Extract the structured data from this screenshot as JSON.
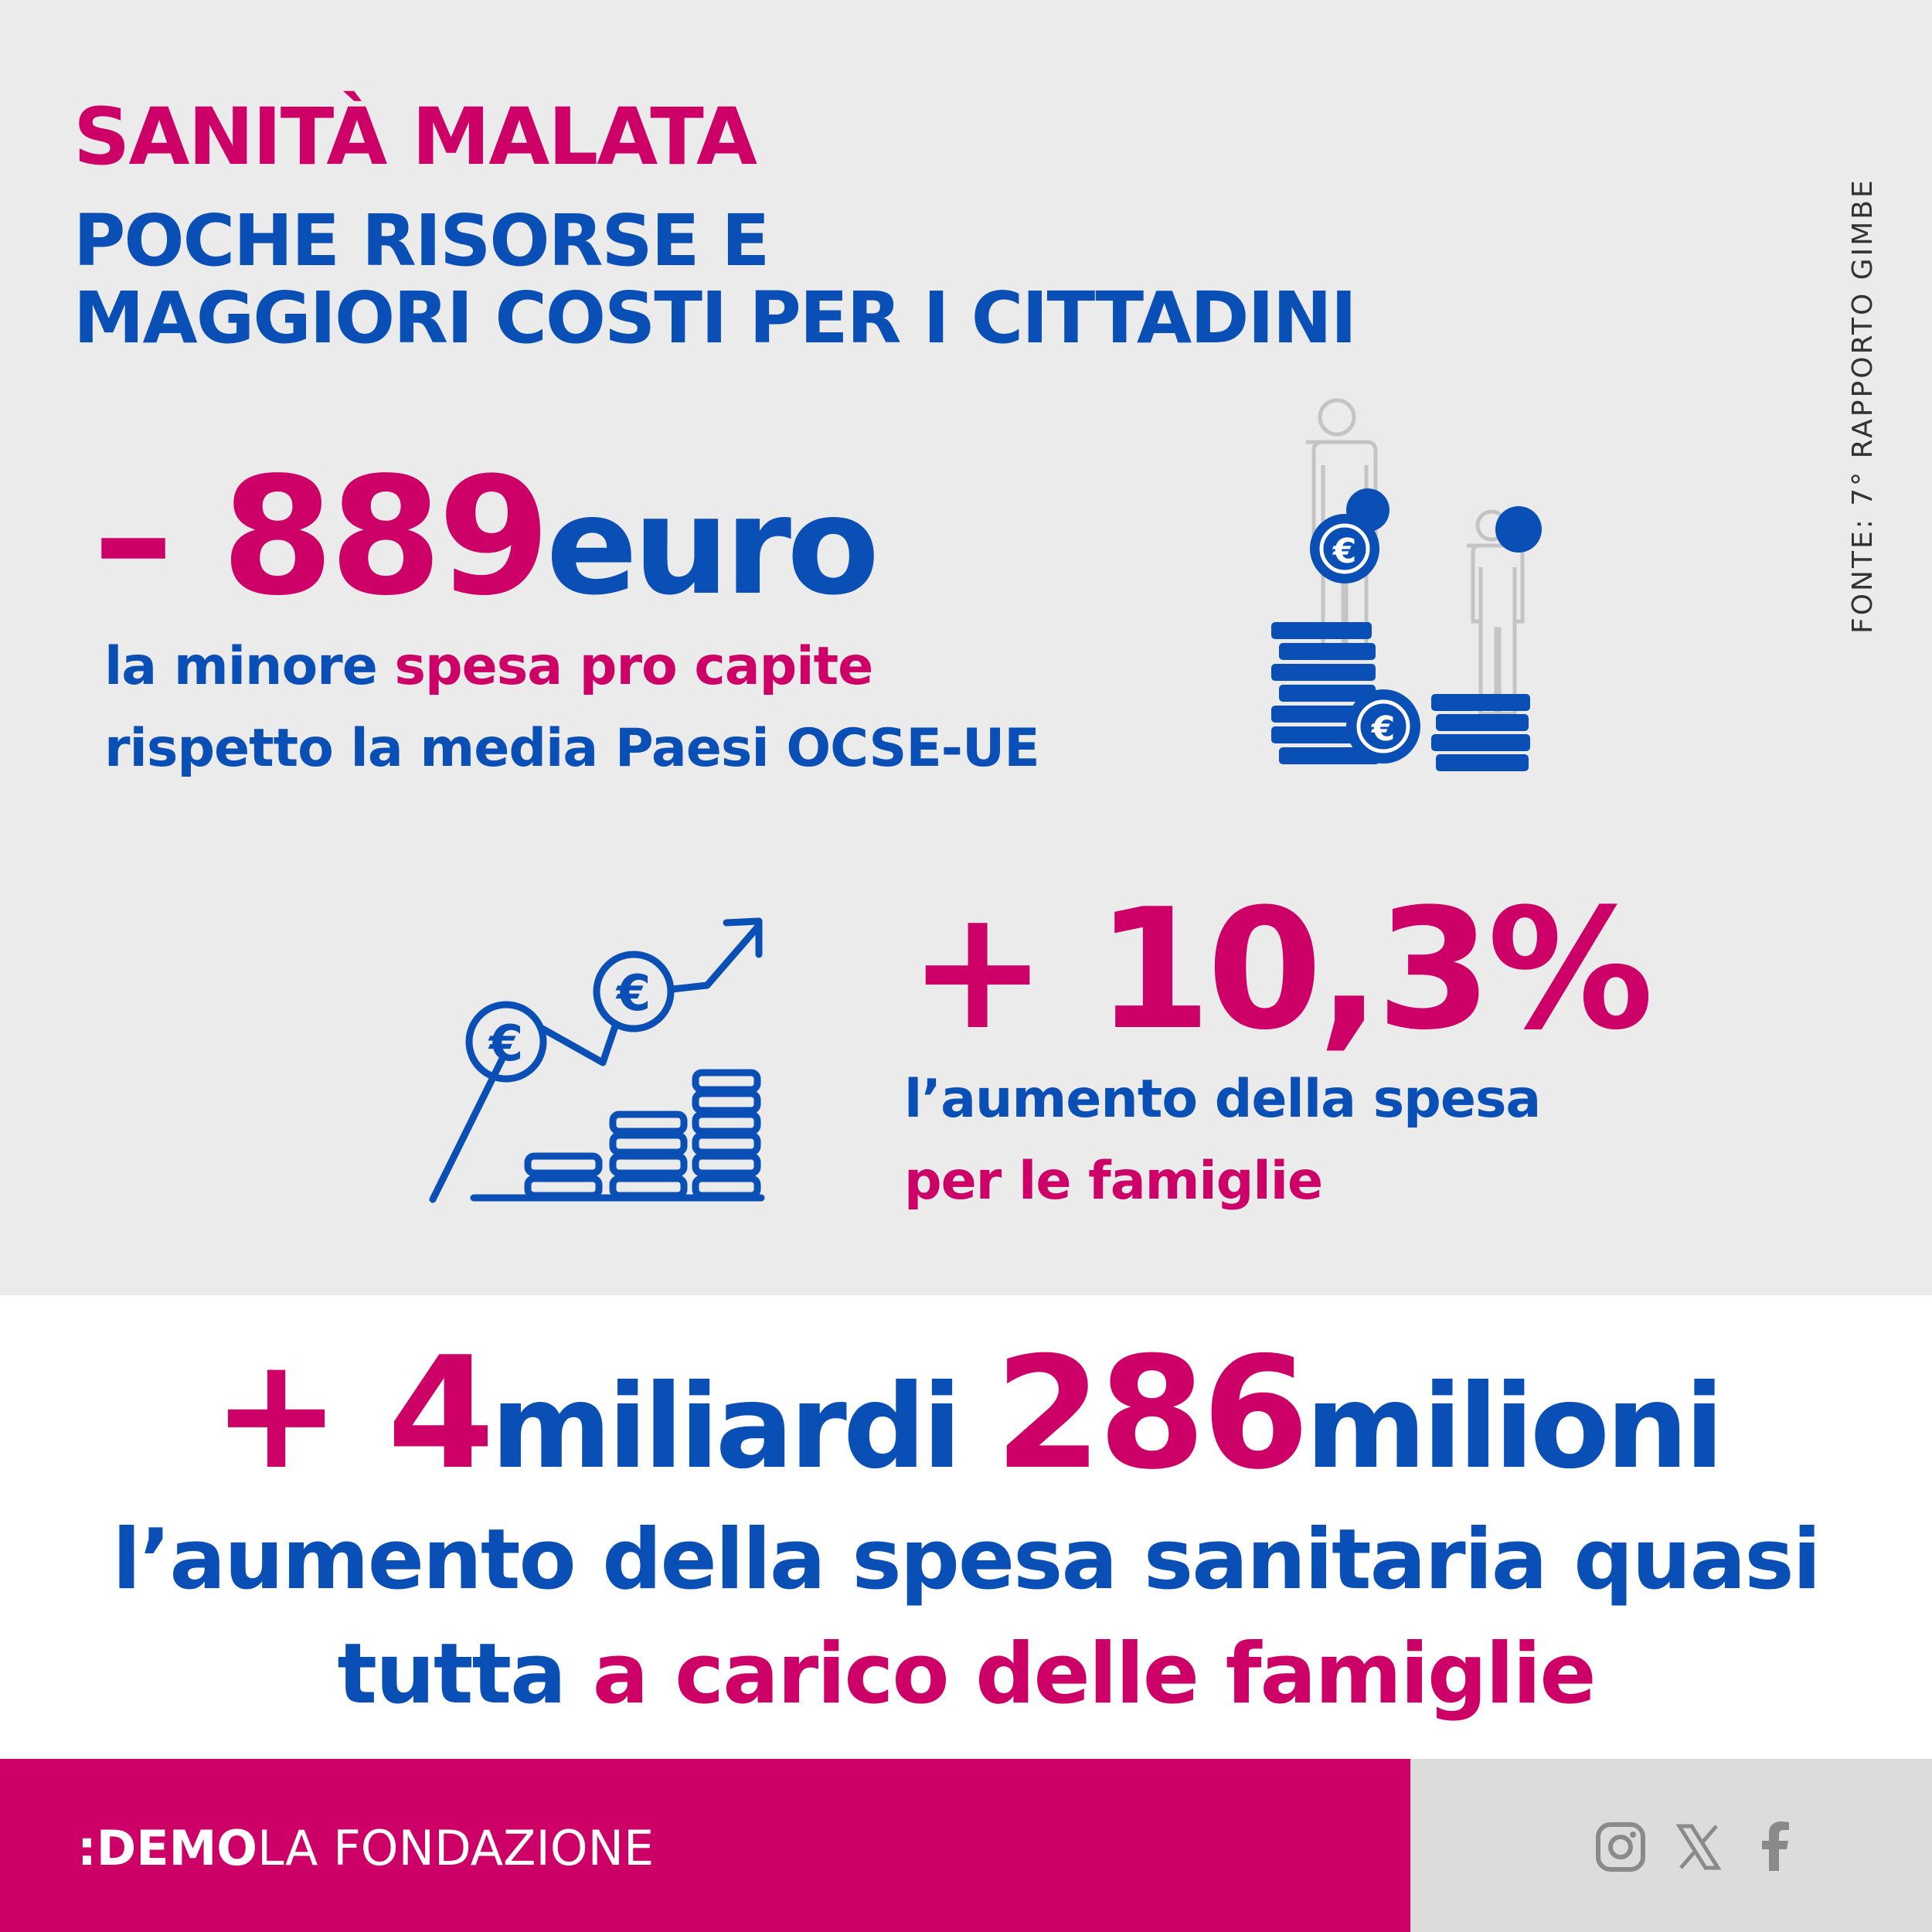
{
  "header": {
    "title": "SANITÀ MALATA",
    "subtitle_line1": "POCHE RISORSE E",
    "subtitle_line2": "MAGGIORI COSTI PER I CITTADINI"
  },
  "source": "FONTE: 7° RAPPORTO GIMBE",
  "stat1": {
    "value": "– 889",
    "unit": "euro",
    "line1_a": "la minore ",
    "line1_b": "spesa pro capite",
    "line2": "rispetto la media Paesi OCSE-UE"
  },
  "stat2": {
    "value": "+ 10,3%",
    "line1": "l’aumento della spesa",
    "line2": "per le famiglie"
  },
  "stat3": {
    "plus": "+ ",
    "value_a": "4",
    "unit_a": "miliardi ",
    "value_b": "286",
    "unit_b": "milioni",
    "line1": "l’aumento della spesa sanitaria quasi",
    "line2_a": "tutta ",
    "line2_b": "a carico delle famiglie"
  },
  "footer": {
    "brand_bold": ":DEMO",
    "brand_light": "LA FONDAZIONE",
    "social_icons": [
      "instagram-icon",
      "x-icon",
      "facebook-icon"
    ]
  },
  "colors": {
    "pink": "#cc0066",
    "blue": "#0a4fb5",
    "background": "#ebebeb"
  }
}
